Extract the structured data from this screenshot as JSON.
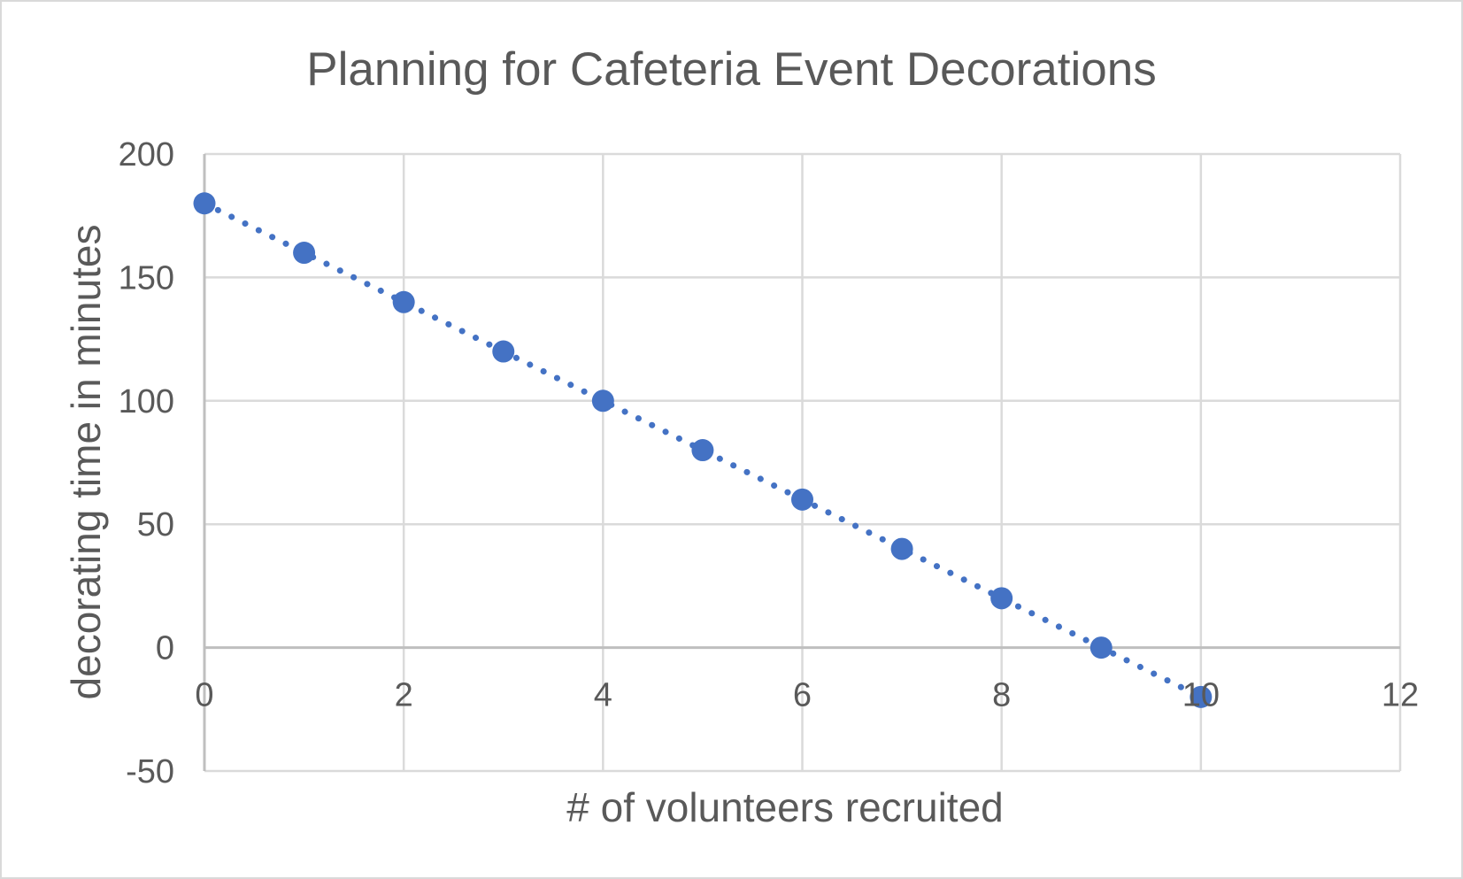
{
  "chart_data": {
    "type": "scatter",
    "title": "Planning for Cafeteria Event Decorations",
    "xlabel": "# of volunteers recruited",
    "ylabel": "decorating time in minutes",
    "x": [
      0,
      1,
      2,
      3,
      4,
      5,
      6,
      7,
      8,
      9,
      10
    ],
    "y": [
      180,
      160,
      140,
      120,
      100,
      80,
      60,
      40,
      20,
      0,
      -20
    ],
    "xlim": [
      0,
      12
    ],
    "ylim": [
      -50,
      200
    ],
    "xticks": [
      0,
      2,
      4,
      6,
      8,
      10,
      12
    ],
    "yticks": [
      -50,
      0,
      50,
      100,
      150,
      200
    ],
    "grid": true,
    "legend": false,
    "trendline": "dotted-line-through-points"
  },
  "colors": {
    "marker": "#4472C4",
    "trendline": "#4472C4",
    "gridline": "#DADADA",
    "axis_line": "#BFBFBF",
    "text": "#595959",
    "frame_border": "#D9D9D9",
    "background": "#FFFFFF"
  }
}
